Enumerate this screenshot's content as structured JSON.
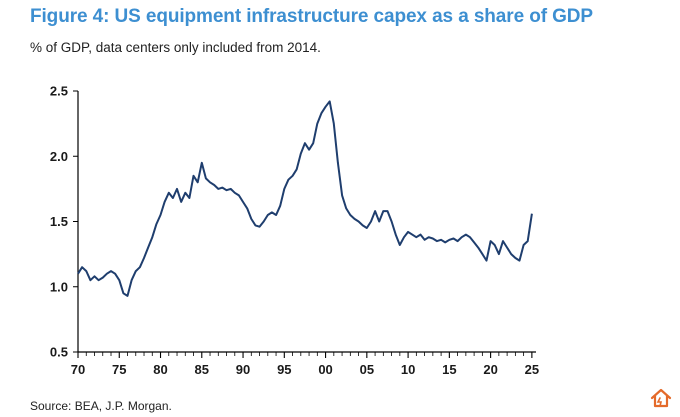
{
  "header": {
    "title": "Figure 4: US equipment infrastructure capex as a share of GDP",
    "subtitle": "% of GDP, data centers only included from 2014."
  },
  "footer": {
    "source": "Source: BEA, J.P. Morgan."
  },
  "colors": {
    "title": "#3d8fd1",
    "line": "#1f3e6e",
    "watermark": "#e46a2a"
  },
  "watermark_icon": "house-logo-icon",
  "chart_data": {
    "type": "line",
    "title": "",
    "xlabel": "",
    "ylabel": "",
    "ylim": [
      0.5,
      2.5
    ],
    "yticks": [
      0.5,
      1.0,
      1.5,
      2.0,
      2.5
    ],
    "ytick_labels": [
      "0.5",
      "1.0",
      "1.5",
      "2.0",
      "2.5"
    ],
    "xlim": [
      1970,
      2025.5
    ],
    "xticks": [
      1970,
      1975,
      1980,
      1985,
      1990,
      1995,
      2000,
      2005,
      2010,
      2015,
      2020,
      2025
    ],
    "xtick_labels": [
      "70",
      "75",
      "80",
      "85",
      "90",
      "95",
      "00",
      "05",
      "10",
      "15",
      "20",
      "25"
    ],
    "grid": false,
    "legend": "none",
    "series": [
      {
        "x": [
          1970,
          1970.5,
          1971,
          1971.5,
          1972,
          1972.5,
          1973,
          1973.5,
          1974,
          1974.5,
          1975,
          1975.5,
          1976,
          1976.5,
          1977,
          1977.5,
          1978,
          1978.5,
          1979,
          1979.5,
          1980,
          1980.5,
          1981,
          1981.5,
          1982,
          1982.5,
          1983,
          1983.5,
          1984,
          1984.5,
          1985,
          1985.5,
          1986,
          1986.5,
          1987,
          1987.5,
          1988,
          1988.5,
          1989,
          1989.5,
          1990,
          1990.5,
          1991,
          1991.5,
          1992,
          1992.5,
          1993,
          1993.5,
          1994,
          1994.5,
          1995,
          1995.5,
          1996,
          1996.5,
          1997,
          1997.5,
          1998,
          1998.5,
          1999,
          1999.5,
          2000,
          2000.5,
          2001,
          2001.5,
          2002,
          2002.5,
          2003,
          2003.5,
          2004,
          2004.5,
          2005,
          2005.5,
          2006,
          2006.5,
          2007,
          2007.5,
          2008,
          2008.5,
          2009,
          2009.5,
          2010,
          2010.5,
          2011,
          2011.5,
          2012,
          2012.5,
          2013,
          2013.5,
          2014,
          2014.5,
          2015,
          2015.5,
          2016,
          2016.5,
          2017,
          2017.5,
          2018,
          2018.5,
          2019,
          2019.5,
          2020,
          2020.5,
          2021,
          2021.5,
          2022,
          2022.5,
          2023,
          2023.5,
          2024,
          2024.5,
          2025
        ],
        "values": [
          1.1,
          1.15,
          1.12,
          1.05,
          1.08,
          1.05,
          1.07,
          1.1,
          1.12,
          1.1,
          1.05,
          0.95,
          0.93,
          1.05,
          1.12,
          1.15,
          1.22,
          1.3,
          1.38,
          1.48,
          1.55,
          1.65,
          1.72,
          1.68,
          1.75,
          1.65,
          1.72,
          1.68,
          1.85,
          1.8,
          1.95,
          1.83,
          1.8,
          1.78,
          1.75,
          1.76,
          1.74,
          1.75,
          1.72,
          1.7,
          1.65,
          1.6,
          1.52,
          1.47,
          1.46,
          1.5,
          1.55,
          1.57,
          1.55,
          1.62,
          1.75,
          1.82,
          1.85,
          1.9,
          2.02,
          2.1,
          2.05,
          2.1,
          2.25,
          2.33,
          2.38,
          2.42,
          2.25,
          1.95,
          1.7,
          1.6,
          1.55,
          1.52,
          1.5,
          1.47,
          1.45,
          1.5,
          1.58,
          1.5,
          1.58,
          1.58,
          1.5,
          1.4,
          1.32,
          1.38,
          1.42,
          1.4,
          1.38,
          1.4,
          1.36,
          1.38,
          1.37,
          1.35,
          1.36,
          1.34,
          1.36,
          1.37,
          1.35,
          1.38,
          1.4,
          1.38,
          1.34,
          1.3,
          1.25,
          1.2,
          1.35,
          1.32,
          1.25,
          1.35,
          1.3,
          1.25,
          1.22,
          1.2,
          1.32,
          1.35,
          1.56
        ]
      }
    ]
  }
}
